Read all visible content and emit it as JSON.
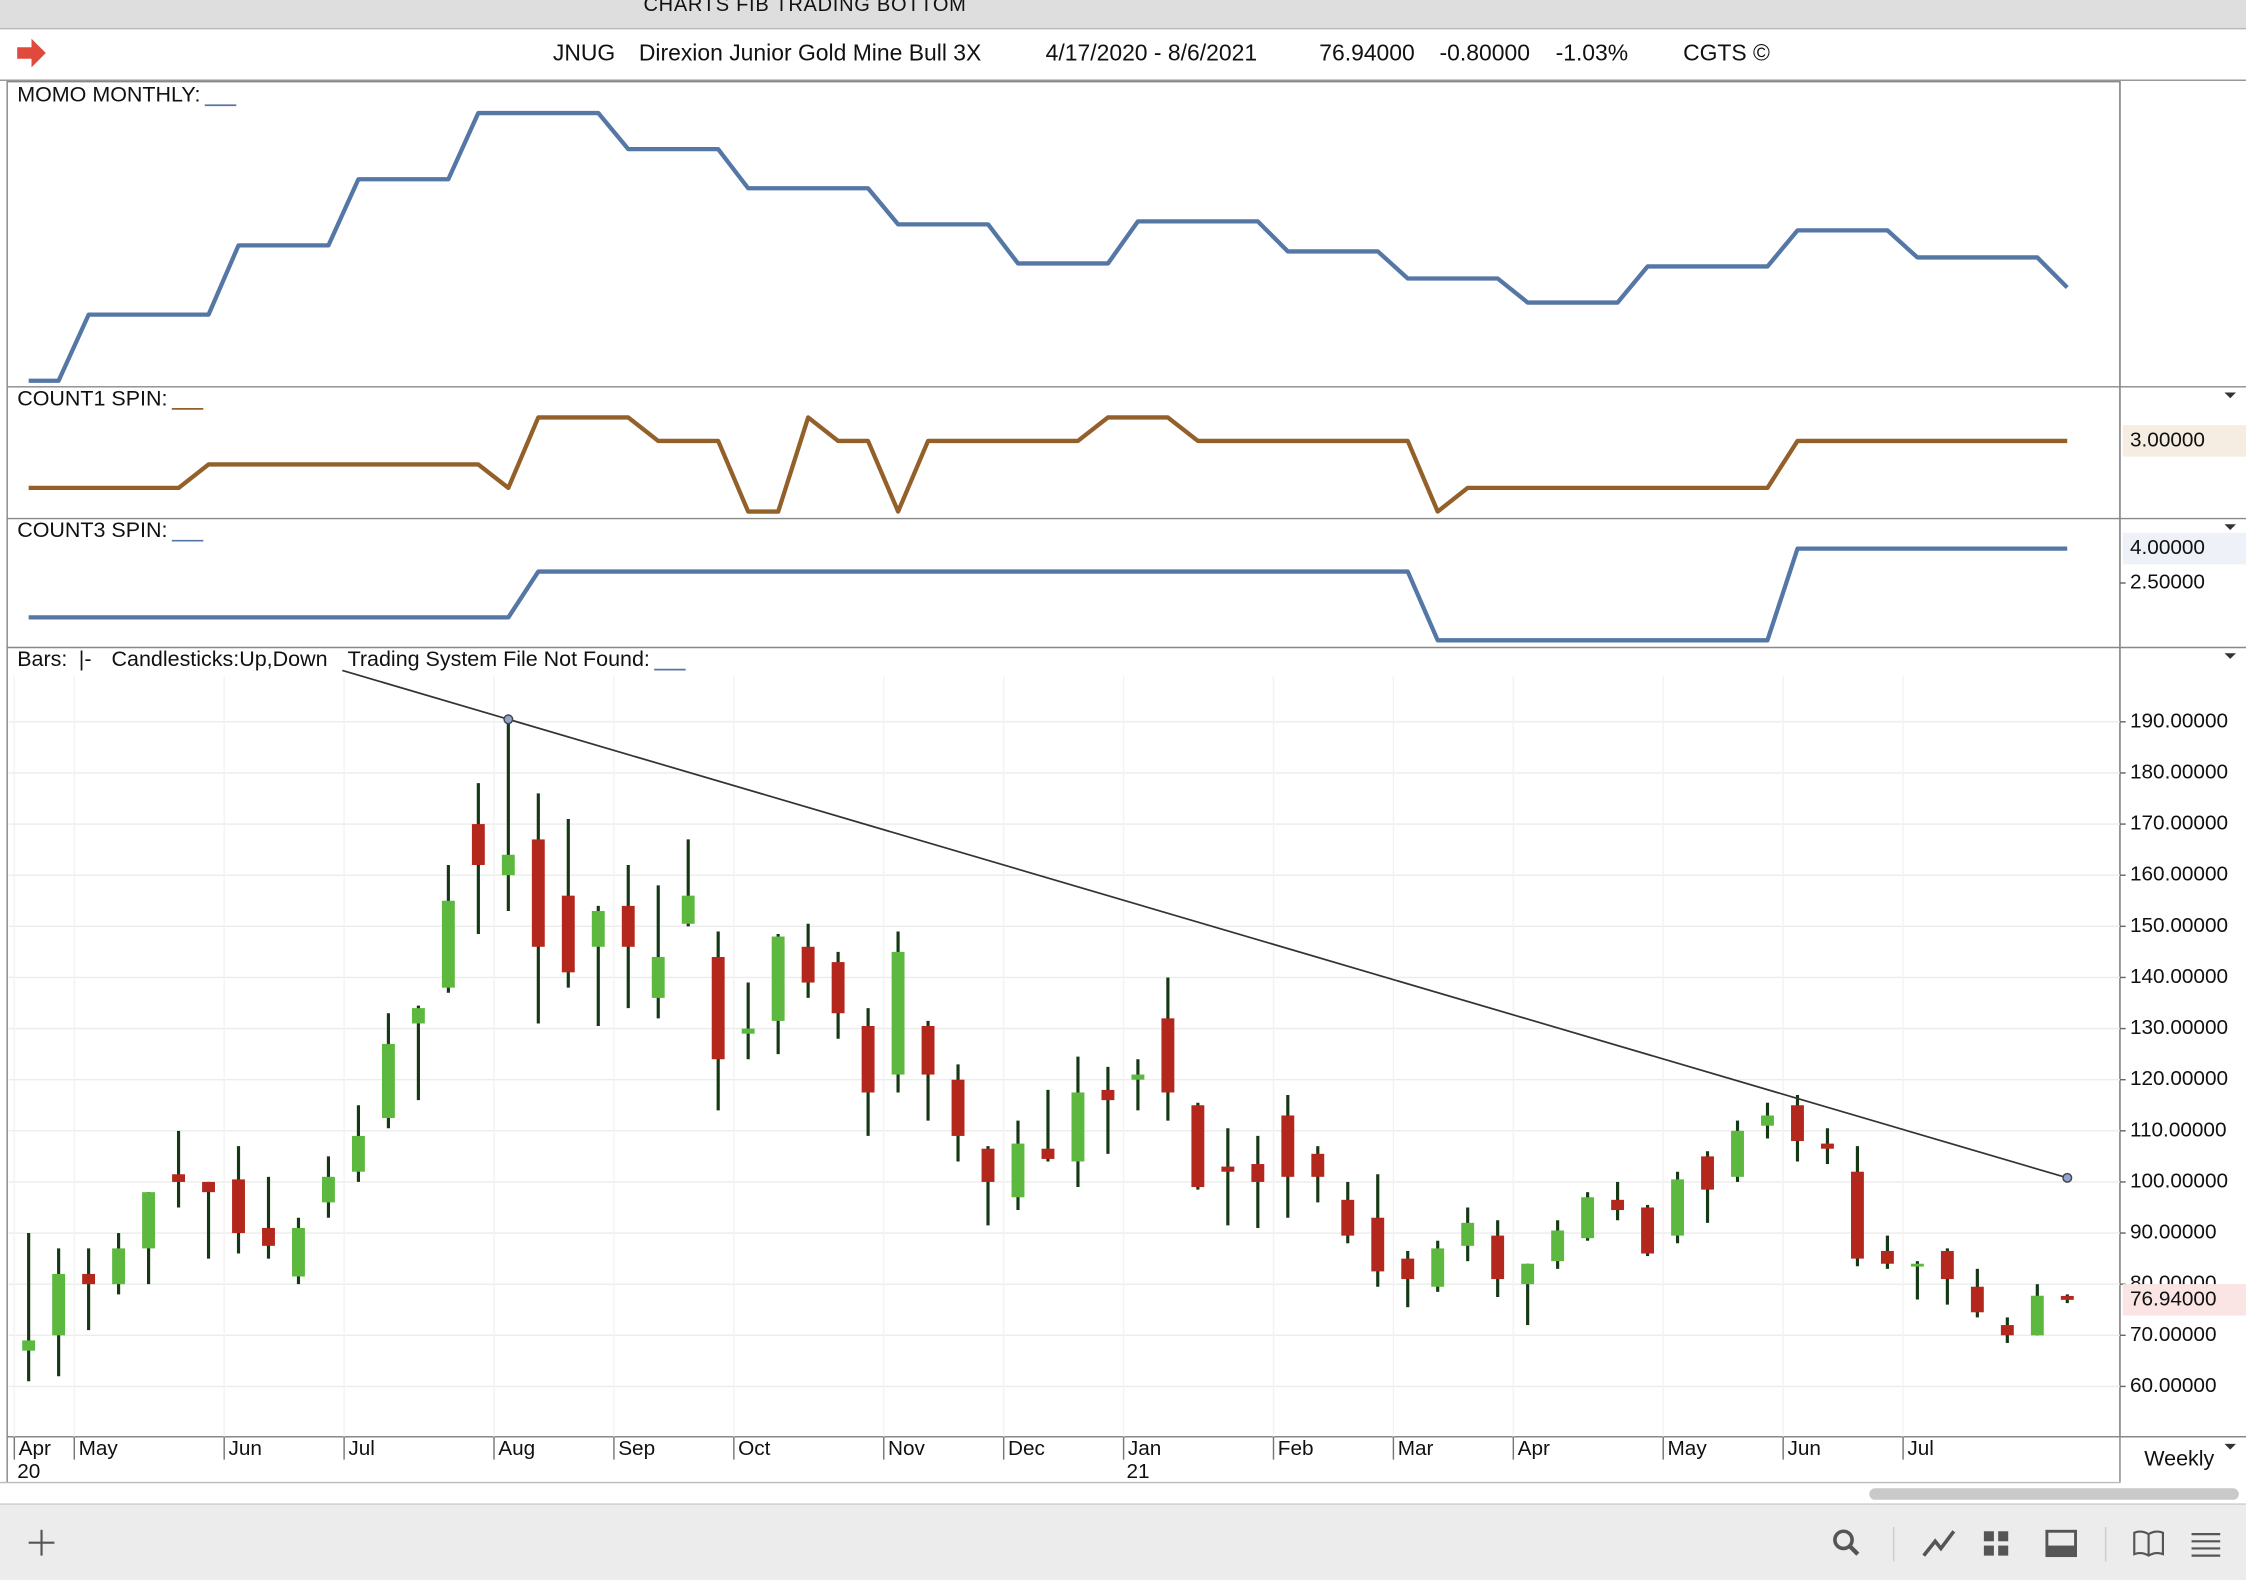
{
  "window_title": "CHARTS FIB TRADING BOTTOM",
  "header": {
    "symbol": "JNUG",
    "name": "Direxion Junior Gold Mine Bull 3X",
    "date_range": "4/17/2020 - 8/6/2021",
    "last": "76.94000",
    "change": "-0.80000",
    "change_pct": "-1.03%",
    "source": "CGTS ©"
  },
  "period": "Weekly",
  "chart_data": [
    {
      "type": "line",
      "label": "MOMO MONTHLY:",
      "color": "#5577a6",
      "ylim": [
        0,
        100
      ],
      "values": [
        2,
        2,
        24,
        24,
        24,
        24,
        24,
        47,
        47,
        47,
        47,
        69,
        69,
        69,
        69,
        91,
        91,
        91,
        91,
        91,
        79,
        79,
        79,
        79,
        66,
        66,
        66,
        66,
        66,
        54,
        54,
        54,
        54,
        41,
        41,
        41,
        41,
        55,
        55,
        55,
        55,
        55,
        45,
        45,
        45,
        45,
        36,
        36,
        36,
        36,
        28,
        28,
        28,
        28,
        40,
        40,
        40,
        40,
        40,
        52,
        52,
        52,
        52,
        43,
        43,
        43,
        43,
        43,
        33
      ]
    },
    {
      "type": "line",
      "label": "COUNT1 SPIN:",
      "color": "#94602a",
      "ylim": [
        -0.3,
        5.3
      ],
      "values": [
        1,
        1,
        1,
        1,
        1,
        1,
        2,
        2,
        2,
        2,
        2,
        2,
        2,
        2,
        2,
        2,
        1,
        4,
        4,
        4,
        4,
        3,
        3,
        3,
        0,
        0,
        4,
        3,
        3,
        0,
        3,
        3,
        3,
        3,
        3,
        3,
        4,
        4,
        4,
        3,
        3,
        3,
        3,
        3,
        3,
        3,
        3,
        0,
        1,
        1,
        1,
        1,
        1,
        1,
        1,
        1,
        1,
        1,
        1,
        3,
        3,
        3,
        3,
        3,
        3,
        3,
        3,
        3,
        3
      ],
      "last_value_label": "3.00000"
    },
    {
      "type": "line",
      "label": "COUNT3 SPIN:",
      "color": "#5577a6",
      "ylim": [
        -0.31,
        5.31
      ],
      "yticks": [
        {
          "value": 2.5,
          "label": "2.50000"
        }
      ],
      "values": [
        1,
        1,
        1,
        1,
        1,
        1,
        1,
        1,
        1,
        1,
        1,
        1,
        1,
        1,
        1,
        1,
        1,
        3,
        3,
        3,
        3,
        3,
        3,
        3,
        3,
        3,
        3,
        3,
        3,
        3,
        3,
        3,
        3,
        3,
        3,
        3,
        3,
        3,
        3,
        3,
        3,
        3,
        3,
        3,
        3,
        3,
        3,
        0,
        0,
        0,
        0,
        0,
        0,
        0,
        0,
        0,
        0,
        0,
        0,
        4,
        4,
        4,
        4,
        4,
        4,
        4,
        4,
        4,
        4
      ],
      "last_value_label": "4.00000"
    },
    {
      "type": "candlestick",
      "legend": {
        "bars": "Bars:",
        "bars_symbol": "|-",
        "candlesticks": "Candlesticks:",
        "up": "Up",
        "separator": ",",
        "down": "Down",
        "system": "Trading System File Not Found:"
      },
      "up_color": "#5cb83e",
      "down_color": "#b3271d",
      "wick_color": "#143814",
      "categories": [
        "Apr",
        null,
        "May",
        null,
        null,
        null,
        null,
        "Jun",
        null,
        null,
        null,
        "Jul",
        null,
        null,
        null,
        null,
        "Aug",
        null,
        null,
        null,
        "Sep",
        null,
        null,
        null,
        "Oct",
        null,
        null,
        null,
        null,
        "Nov",
        null,
        null,
        null,
        "Dec",
        null,
        null,
        null,
        "Jan",
        null,
        null,
        null,
        null,
        "Feb",
        null,
        null,
        null,
        "Mar",
        null,
        null,
        null,
        "Apr",
        null,
        null,
        null,
        null,
        "May",
        null,
        null,
        null,
        "Jun",
        null,
        null,
        null,
        "Jul",
        null,
        null,
        null,
        null,
        null
      ],
      "years": [
        "20",
        null,
        null,
        null,
        null,
        null,
        null,
        null,
        null,
        null,
        null,
        null,
        null,
        null,
        null,
        null,
        null,
        null,
        null,
        null,
        null,
        null,
        null,
        null,
        null,
        null,
        null,
        null,
        null,
        null,
        null,
        null,
        null,
        null,
        null,
        null,
        null,
        "21",
        null,
        null,
        null,
        null,
        null,
        null,
        null,
        null,
        null,
        null,
        null,
        null,
        null,
        null,
        null,
        null,
        null,
        null,
        null,
        null,
        null,
        null,
        null,
        null,
        null,
        null,
        null,
        null,
        null,
        null,
        null
      ],
      "open": [
        67,
        70,
        82,
        80,
        87,
        101.5,
        100,
        100.5,
        91,
        81.5,
        96,
        102,
        112.5,
        131,
        138,
        170,
        160,
        167,
        156,
        146,
        154,
        136,
        150.5,
        144,
        129,
        131.5,
        146,
        143,
        130.5,
        121,
        130.5,
        120,
        106.5,
        97,
        106.5,
        104,
        118,
        120,
        132,
        115,
        103,
        103.5,
        113,
        105.5,
        96.5,
        93,
        85,
        79.5,
        87.5,
        89.5,
        80,
        84.5,
        89,
        96.5,
        95,
        89.5,
        105,
        101,
        111,
        115,
        107.5,
        102,
        86.5,
        83.5,
        86.5,
        79.5,
        72,
        70,
        77.7
      ],
      "high": [
        90,
        87,
        87,
        90,
        98,
        110,
        100,
        107,
        101,
        93,
        105,
        115,
        133,
        134.5,
        162,
        178,
        191,
        176,
        171,
        154,
        162,
        158,
        167,
        149,
        139,
        148.5,
        150.5,
        145,
        134,
        149,
        131.5,
        123,
        107,
        112,
        118,
        124.5,
        122.5,
        124,
        140,
        115.5,
        110.5,
        109,
        117,
        107,
        100,
        101.5,
        86.5,
        88.5,
        95,
        92.5,
        84,
        92.5,
        98,
        100,
        95.5,
        102,
        106,
        112,
        115.5,
        117,
        110.5,
        107,
        89.5,
        84.5,
        87,
        83,
        73.5,
        80,
        78
      ],
      "low": [
        61,
        62,
        71,
        78,
        80,
        95,
        85,
        86,
        85,
        80,
        93,
        100,
        110.5,
        116,
        137,
        148.5,
        153,
        131,
        138,
        130.5,
        134,
        132,
        150,
        114,
        124,
        125,
        136,
        128,
        109,
        117.5,
        112,
        104,
        91.5,
        94.5,
        104,
        99,
        105.5,
        114,
        112,
        98.5,
        91.5,
        91,
        93,
        96,
        88,
        79.5,
        75.5,
        78.5,
        84.5,
        77.5,
        72,
        83,
        88.5,
        92.5,
        85.5,
        88,
        92,
        100,
        108.5,
        104,
        103.5,
        83.5,
        83,
        77,
        76,
        73.5,
        68.5,
        70,
        76.3
      ],
      "close": [
        69,
        82,
        80,
        87,
        98,
        100,
        98,
        90,
        87.5,
        91,
        101,
        109,
        127,
        134,
        155,
        162,
        164,
        146,
        141,
        153,
        146,
        144,
        156,
        124,
        130,
        148,
        139,
        133,
        117.5,
        145,
        121,
        109,
        100,
        107.5,
        104.5,
        117.5,
        116,
        121,
        117.5,
        99,
        102,
        100,
        101,
        101,
        89.5,
        82.5,
        81,
        87,
        92,
        81,
        84,
        90.5,
        97,
        94.5,
        86,
        100.5,
        98.5,
        110,
        113,
        108,
        106.5,
        85,
        84,
        84,
        81,
        74.5,
        70,
        77.74,
        76.94
      ],
      "last_value_label": "76.94000",
      "trendline": {
        "x": [
          16,
          68
        ],
        "y": [
          190.5,
          100.8
        ],
        "color": "#333333"
      },
      "ylim": [
        51,
        195.3
      ],
      "yticks": [
        {
          "value": 190,
          "label": "190.00000"
        },
        {
          "value": 180,
          "label": "180.00000"
        },
        {
          "value": 170,
          "label": "170.00000"
        },
        {
          "value": 160,
          "label": "160.00000"
        },
        {
          "value": 150,
          "label": "150.00000"
        },
        {
          "value": 140,
          "label": "140.00000"
        },
        {
          "value": 130,
          "label": "130.00000"
        },
        {
          "value": 120,
          "label": "120.00000"
        },
        {
          "value": 110,
          "label": "110.00000"
        },
        {
          "value": 100,
          "label": "100.00000"
        },
        {
          "value": 90,
          "label": "90.00000"
        },
        {
          "value": 80,
          "label": "80.00000"
        },
        {
          "value": 70,
          "label": "70.00000"
        },
        {
          "value": 60,
          "label": "60.00000"
        }
      ],
      "grid": true
    }
  ]
}
